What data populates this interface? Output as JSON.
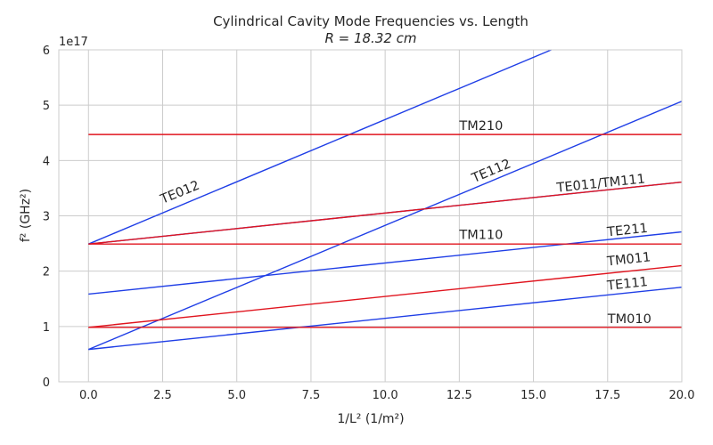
{
  "chart_data": {
    "type": "line",
    "title": "Cylindrical Cavity Mode Frequencies vs. Length",
    "subtitle": "R = 18.32 cm",
    "xlabel": "1/L² (1/m²)",
    "ylabel": "f² (GHz²)",
    "y_offset_label": "1e17",
    "xlim": [
      -1.0,
      20.0
    ],
    "ylim": [
      0,
      6
    ],
    "xticks": [
      0.0,
      2.5,
      5.0,
      7.5,
      10.0,
      12.5,
      15.0,
      17.5,
      20.0
    ],
    "xtick_labels": [
      "0.0",
      "2.5",
      "5.0",
      "7.5",
      "10.0",
      "12.5",
      "15.0",
      "17.5",
      "20.0"
    ],
    "yticks": [
      0,
      1,
      2,
      3,
      4,
      5,
      6
    ],
    "ytick_labels": [
      "0",
      "1",
      "2",
      "3",
      "4",
      "5",
      "6"
    ],
    "grid": true,
    "colors": {
      "TE": "#1f3ee6",
      "TM": "#e0141e"
    },
    "series": [
      {
        "name": "TM010",
        "family": "TM",
        "points": [
          [
            0,
            0.985
          ],
          [
            20,
            0.985
          ]
        ],
        "label_at": [
          17.5,
          1.06
        ],
        "label_angle_deg": 0
      },
      {
        "name": "TE111",
        "family": "TE",
        "points": [
          [
            0,
            0.585
          ],
          [
            20,
            1.71
          ]
        ],
        "label_at": [
          17.5,
          1.66
        ],
        "label_angle_deg": -6
      },
      {
        "name": "TM011",
        "family": "TM",
        "points": [
          [
            0,
            0.985
          ],
          [
            20,
            2.1
          ]
        ],
        "label_at": [
          17.5,
          2.1
        ],
        "label_angle_deg": -6
      },
      {
        "name": "TE211",
        "family": "TE",
        "points": [
          [
            0,
            1.585
          ],
          [
            20,
            2.71
          ]
        ],
        "label_at": [
          17.5,
          2.63
        ],
        "label_angle_deg": -6
      },
      {
        "name": "TM110",
        "family": "TM",
        "points": [
          [
            0,
            2.49
          ],
          [
            20,
            2.49
          ]
        ],
        "label_at": [
          12.5,
          2.58
        ],
        "label_angle_deg": 0
      },
      {
        "name": "TE011",
        "family": "TE",
        "points": [
          [
            0,
            2.49
          ],
          [
            20,
            3.61
          ]
        ],
        "label_at": null,
        "label_angle_deg": 0
      },
      {
        "name": "TM111",
        "family": "TM",
        "points": [
          [
            0,
            2.49
          ],
          [
            20,
            3.61
          ]
        ],
        "label_at": null,
        "label_angle_deg": 0
      },
      {
        "name": "TM210",
        "family": "TM",
        "points": [
          [
            0,
            4.47
          ],
          [
            20,
            4.47
          ]
        ],
        "label_at": [
          12.5,
          4.55
        ],
        "label_angle_deg": 0
      },
      {
        "name": "TE112",
        "family": "TE",
        "points": [
          [
            0,
            0.585
          ],
          [
            20,
            5.07
          ]
        ],
        "label_at": [
          13.0,
          3.6
        ],
        "label_angle_deg": -23
      },
      {
        "name": "TE012",
        "family": "TE",
        "points": [
          [
            0,
            2.49
          ],
          [
            15.6,
            6.0
          ]
        ],
        "label_at": [
          2.5,
          3.22
        ],
        "label_angle_deg": -22
      }
    ],
    "annotations": [
      {
        "text": "TE011/TM111",
        "at": [
          15.8,
          3.43
        ],
        "angle_deg": -6
      }
    ]
  }
}
